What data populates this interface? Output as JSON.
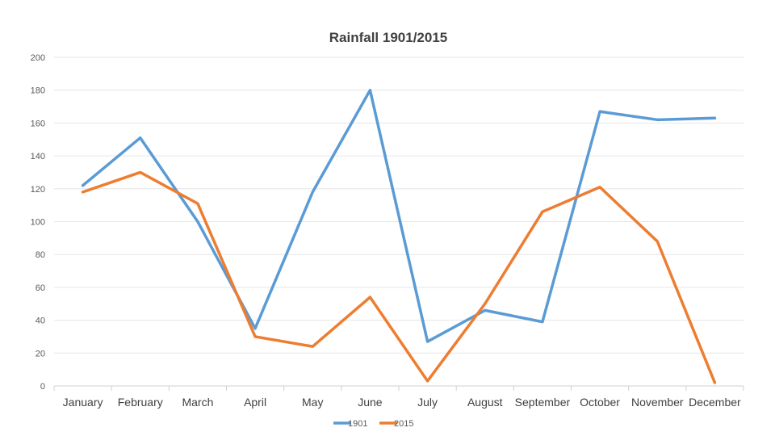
{
  "chart_data": {
    "type": "line",
    "title": "Rainfall 1901/2015",
    "xlabel": "",
    "ylabel": "",
    "ylim": [
      0,
      200
    ],
    "yticks": [
      0,
      20,
      40,
      60,
      80,
      100,
      120,
      140,
      160,
      180,
      200
    ],
    "grid": true,
    "legend_position": "bottom",
    "categories": [
      "January",
      "February",
      "March",
      "April",
      "May",
      "June",
      "July",
      "August",
      "September",
      "October",
      "November",
      "December"
    ],
    "series": [
      {
        "name": "1901",
        "color": "#5B9BD5",
        "values": [
          122,
          151,
          100,
          35,
          118,
          180,
          27,
          46,
          39,
          167,
          162,
          163
        ]
      },
      {
        "name": "2015",
        "color": "#ED7D31",
        "values": [
          118,
          130,
          111,
          30,
          24,
          54,
          3,
          50,
          106,
          121,
          88,
          2
        ]
      }
    ]
  }
}
